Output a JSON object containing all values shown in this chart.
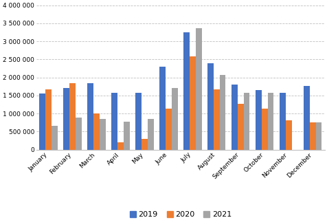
{
  "months": [
    "January",
    "February",
    "March",
    "April",
    "May",
    "June",
    "July",
    "August",
    "September",
    "October",
    "November",
    "December"
  ],
  "series": {
    "2019": [
      1560000,
      1710000,
      1850000,
      1570000,
      1570000,
      2290000,
      3260000,
      2400000,
      1810000,
      1650000,
      1570000,
      1770000
    ],
    "2020": [
      1660000,
      1850000,
      1010000,
      210000,
      295000,
      1130000,
      2590000,
      1660000,
      1260000,
      1140000,
      810000,
      760000
    ],
    "2021": [
      660000,
      895000,
      850000,
      770000,
      845000,
      1710000,
      3370000,
      2060000,
      1575000,
      1575000,
      0,
      760000
    ]
  },
  "colors": {
    "2019": "#4472C4",
    "2020": "#ED7D31",
    "2021": "#A5A5A5"
  },
  "ylim": [
    0,
    4000000
  ],
  "yticks": [
    0,
    500000,
    1000000,
    1500000,
    2000000,
    2500000,
    3000000,
    3500000,
    4000000
  ],
  "ytick_labels": [
    "0",
    "500 000",
    "1 000 000",
    "1 500 000",
    "2 000 000",
    "2 500 000",
    "3 000 000",
    "3 500 000",
    "4 000 000"
  ],
  "legend_labels": [
    "2019",
    "2020",
    "2021"
  ],
  "bar_width": 0.25,
  "grid_color": "#BFBFBF",
  "background_color": "#FFFFFF"
}
